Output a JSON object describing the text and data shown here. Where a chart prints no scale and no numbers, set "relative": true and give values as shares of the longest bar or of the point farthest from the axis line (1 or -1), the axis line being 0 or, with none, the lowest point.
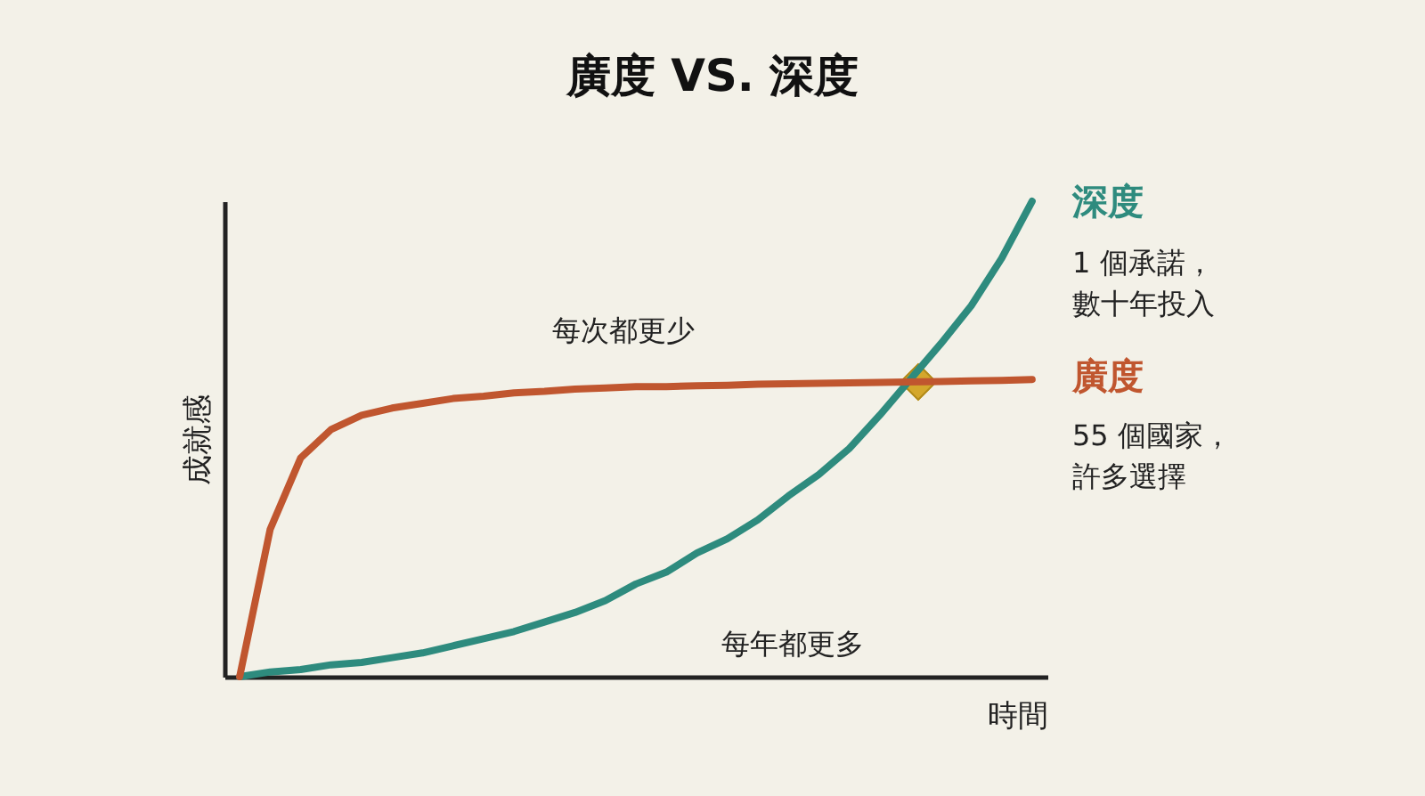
{
  "chart_data": {
    "type": "line",
    "title": "廣度 VS. 深度",
    "xlabel": "時間",
    "ylabel": "成就感",
    "relative": true,
    "tick_labels": false,
    "grid": false,
    "line_style": "solid",
    "categories": [
      null,
      null,
      null,
      null,
      null,
      null,
      null,
      null,
      null,
      null,
      null,
      null,
      null,
      null,
      null,
      null,
      null,
      null,
      null,
      null,
      null,
      null,
      null,
      null,
      null,
      null,
      null
    ],
    "series": [
      {
        "name": "深度",
        "color": "#2e8b7e",
        "values": [
          0,
          0.01,
          0.015,
          0.025,
          0.03,
          0.04,
          0.05,
          0.065,
          0.08,
          0.095,
          0.115,
          0.135,
          0.16,
          0.195,
          0.22,
          0.26,
          0.29,
          0.33,
          0.38,
          0.425,
          0.48,
          0.55,
          null,
          0.7,
          0.78,
          0.88,
          1
        ]
      },
      {
        "name": "廣度",
        "color": "#c0562f",
        "values": [
          0,
          0.31,
          0.46,
          0.52,
          0.55,
          0.565,
          0.575,
          0.585,
          0.59,
          0.597,
          0.6,
          0.605,
          0.607,
          0.61,
          0.61,
          0.612,
          0.613,
          0.615,
          0.616,
          0.617,
          0.618,
          0.619,
          null,
          0.621,
          0.622,
          0.623,
          0.625
        ]
      }
    ],
    "annotations": [
      "1 個承諾，",
      "數十年投入",
      "55 個國家，",
      "許多選擇",
      "每次都更少",
      "每年都更多"
    ]
  }
}
